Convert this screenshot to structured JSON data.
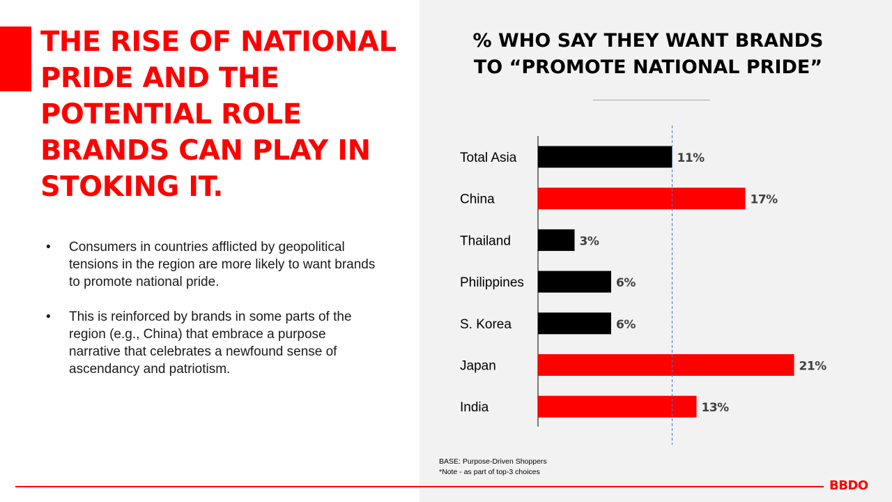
{
  "headline": "THE RISE OF NATIONAL PRIDE AND THE POTENTIAL ROLE BRANDS CAN PLAY IN STOKING IT.",
  "bullets": [
    {
      "marker": "•",
      "text": "Consumers in countries afflicted by geopolitical tensions in the region are more likely to want brands to promote national pride."
    },
    {
      "marker": "•",
      "text": "This is reinforced by brands in some parts of the region (e.g., China) that embrace a purpose narrative that celebrates a newfound sense of ascendancy and patriotism."
    }
  ],
  "chart_title_line1": "% WHO SAY THEY WANT BRANDS",
  "chart_title_line2": "TO “PROMOTE NATIONAL PRIDE”",
  "footnote": {
    "base": "BASE: Purpose-Driven Shoppers",
    "note": "*Note - as part of top-3 choices"
  },
  "logo": "BBDO",
  "colors": {
    "accent_red": "#ff0000",
    "bar_black": "#000000",
    "reference_line": "#4472c4",
    "panel_gray": "#f2f2f2"
  },
  "chart_data": {
    "type": "bar",
    "orientation": "horizontal",
    "title": "% WHO SAY THEY WANT BRANDS TO “PROMOTE NATIONAL PRIDE”",
    "categories": [
      "Total Asia",
      "China",
      "Thailand",
      "Philippines",
      "S. Korea",
      "Japan",
      "India"
    ],
    "values": [
      11,
      17,
      3,
      6,
      6,
      21,
      13
    ],
    "value_labels": [
      "11%",
      "17%",
      "3%",
      "6%",
      "6%",
      "21%",
      "13%"
    ],
    "bar_colors": [
      "#000000",
      "#ff0000",
      "#000000",
      "#000000",
      "#000000",
      "#ff0000",
      "#ff0000"
    ],
    "reference_line": {
      "value": 11,
      "style": "dashed",
      "color": "#4472c4"
    },
    "xlim": [
      0,
      22
    ],
    "grid": false,
    "legend": "none",
    "xlabel": "",
    "ylabel": ""
  }
}
